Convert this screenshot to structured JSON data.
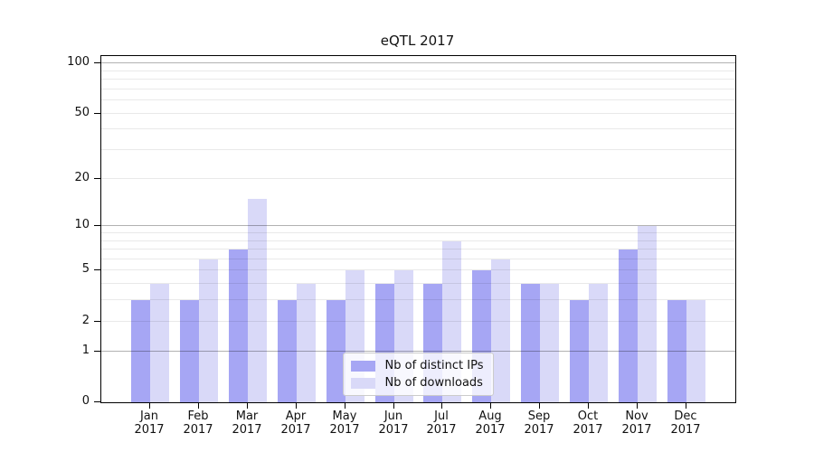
{
  "chart_data": {
    "type": "bar",
    "title": "eQTL 2017",
    "categories": [
      "Jan",
      "Feb",
      "Mar",
      "Apr",
      "May",
      "Jun",
      "Jul",
      "Aug",
      "Sep",
      "Oct",
      "Nov",
      "Dec"
    ],
    "category_year": "2017",
    "series": [
      {
        "name": "Nb of distinct IPs",
        "color": "#a6a6f4",
        "values": [
          3,
          3,
          7,
          3,
          3,
          4,
          4,
          5,
          4,
          3,
          7,
          3
        ]
      },
      {
        "name": "Nb of downloads",
        "color": "#d9d9f8",
        "values": [
          4,
          6,
          15,
          4,
          5,
          5,
          8,
          6,
          4,
          4,
          10,
          3
        ]
      }
    ],
    "y_axis": {
      "tick_values": [
        0,
        1,
        2,
        5,
        10,
        20,
        50,
        100
      ],
      "scale": "log10(value+1)",
      "major_gridlines": [
        1,
        10,
        100
      ],
      "minor_gridlines": [
        2,
        3,
        4,
        5,
        6,
        7,
        8,
        9,
        20,
        30,
        40,
        50,
        60,
        70,
        80,
        90
      ],
      "ymin": 0,
      "ymax_visible_tick": 100
    },
    "x_axis": {
      "label_line2": "2017"
    },
    "legend": {
      "position": "lower center"
    },
    "grid": true
  },
  "palette": {
    "background": "#ffffff",
    "axis": "#000000",
    "text": "#111111",
    "grid_major": "#b3b3b3",
    "grid_minor": "#e9e9e9",
    "legend_border": "#cbcbcb"
  }
}
